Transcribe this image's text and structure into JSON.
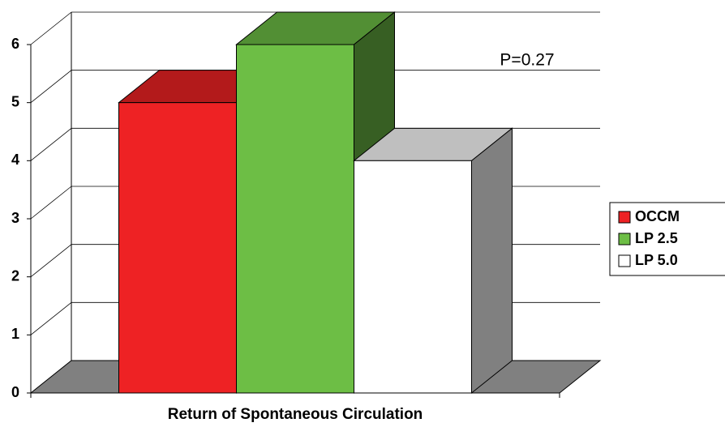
{
  "chart_data": {
    "type": "bar3d",
    "categories": [
      "Return of Spontaneous Circulation"
    ],
    "series": [
      {
        "name": "OCCM",
        "color": "#ee2224",
        "values": [
          5
        ]
      },
      {
        "name": "LP 2.5",
        "color": "#6dbe45",
        "values": [
          6
        ]
      },
      {
        "name": "LP 5.0",
        "color": "#ffffff",
        "values": [
          4
        ]
      }
    ],
    "annotation": "P=0.27",
    "ylim": [
      0,
      6
    ],
    "yticks": [
      0,
      1,
      2,
      3,
      4,
      5,
      6
    ],
    "grid": true,
    "legend": "right"
  }
}
